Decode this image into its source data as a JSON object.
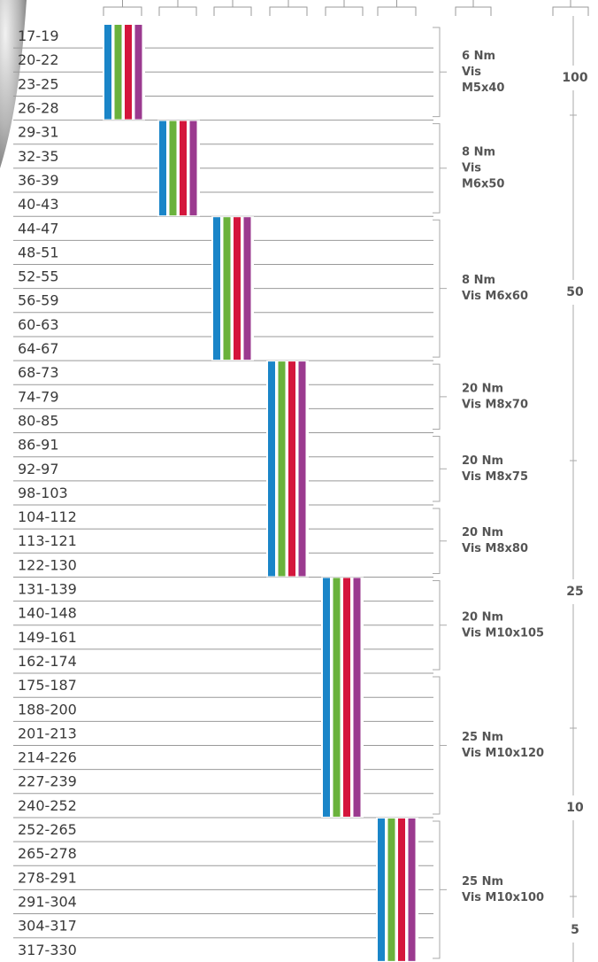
{
  "rows": [
    "17-19",
    "20-22",
    "23-25",
    "26-28",
    "29-31",
    "32-35",
    "36-39",
    "40-43",
    "44-47",
    "48-51",
    "52-55",
    "56-59",
    "60-63",
    "64-67",
    "68-73",
    "74-79",
    "80-85",
    "86-91",
    "92-97",
    "98-103",
    "104-112",
    "113-121",
    "122-130",
    "131-139",
    "140-148",
    "149-161",
    "162-174",
    "175-187",
    "188-200",
    "201-213",
    "214-226",
    "227-239",
    "240-252",
    "252-265",
    "265-278",
    "278-291",
    "291-304",
    "304-317",
    "317-330"
  ],
  "groups": [
    {
      "lines": [
        "6 Nm",
        "Vis",
        "M5x40"
      ]
    },
    {
      "lines": [
        "8 Nm",
        "Vis",
        "M6x50"
      ]
    },
    {
      "lines": [
        "8 Nm",
        "Vis M6x60"
      ]
    },
    {
      "lines": [
        "20 Nm",
        "Vis M8x70"
      ]
    },
    {
      "lines": [
        "20 Nm",
        "Vis M8x75"
      ]
    },
    {
      "lines": [
        "20 Nm",
        "Vis M8x80"
      ]
    },
    {
      "lines": [
        "20 Nm",
        "Vis M10x105"
      ]
    },
    {
      "lines": [
        "25 Nm",
        "Vis M10x120"
      ]
    },
    {
      "lines": [
        "25 Nm",
        "Vis M10x100"
      ]
    }
  ],
  "scale": [
    "100",
    "50",
    "25",
    "10",
    "5"
  ]
}
